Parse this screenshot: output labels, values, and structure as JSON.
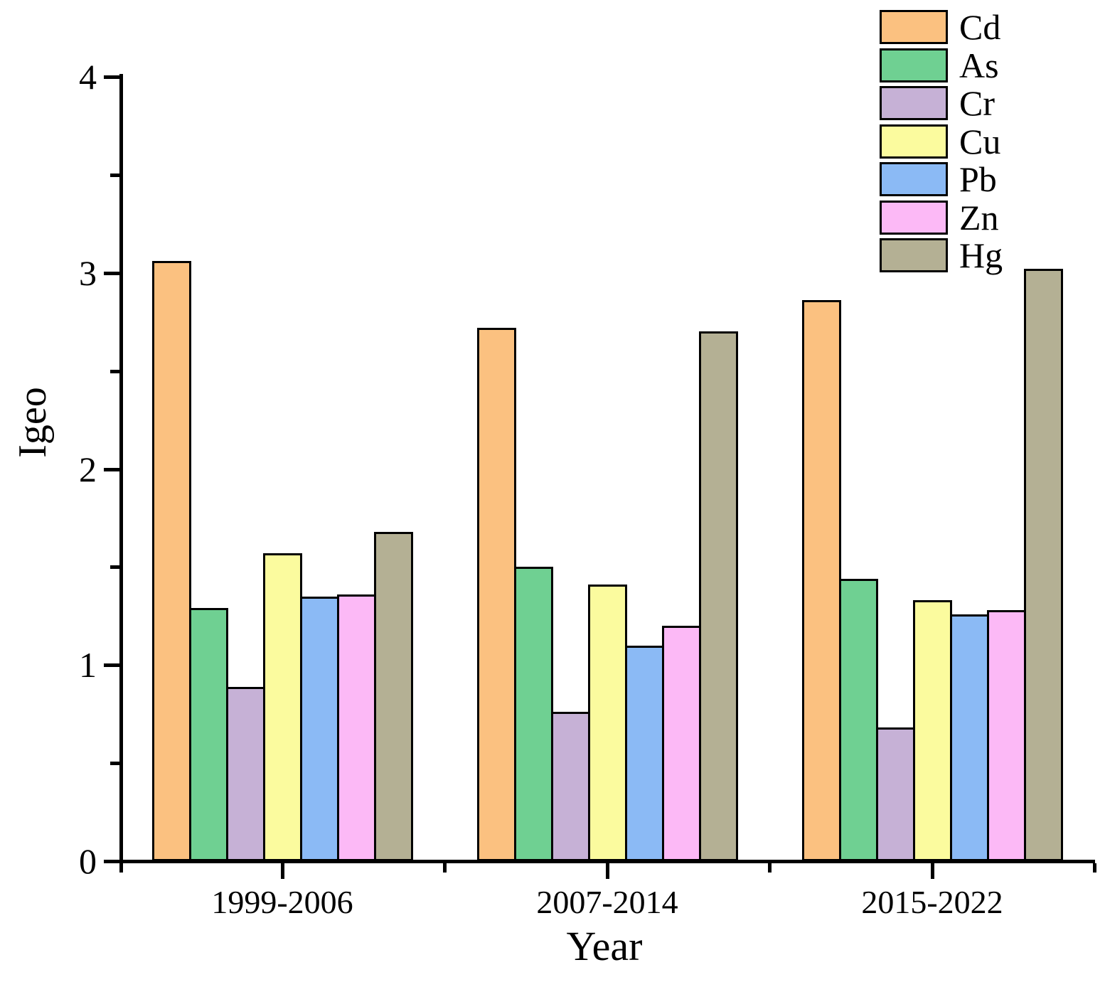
{
  "chart_data": {
    "type": "bar",
    "xlabel": "Year",
    "ylabel": "Igeo",
    "categories": [
      "1999-2006",
      "2007-2014",
      "2015-2022"
    ],
    "series": [
      {
        "name": "Cd",
        "color": "#FBC180",
        "values": [
          3.06,
          2.72,
          2.86
        ]
      },
      {
        "name": "As",
        "color": "#6FD092",
        "values": [
          1.29,
          1.5,
          1.44
        ]
      },
      {
        "name": "Cr",
        "color": "#C6B1D6",
        "values": [
          0.89,
          0.76,
          0.68
        ]
      },
      {
        "name": "Cu",
        "color": "#FBFB9E",
        "values": [
          1.57,
          1.41,
          1.33
        ]
      },
      {
        "name": "Pb",
        "color": "#8BBAF5",
        "values": [
          1.35,
          1.1,
          1.26
        ]
      },
      {
        "name": "Zn",
        "color": "#FCB9F6",
        "values": [
          1.36,
          1.2,
          1.28
        ]
      },
      {
        "name": "Hg",
        "color": "#B4B094",
        "values": [
          1.68,
          2.7,
          3.02
        ]
      }
    ],
    "ylim": [
      0,
      4
    ],
    "yticks": [
      "0",
      "1",
      "2",
      "3",
      "4"
    ],
    "minor_tick_step": 0.5,
    "legend_position": "top-right",
    "grid": "off",
    "bar_border_color": "#000000",
    "axis_color": "#000000"
  }
}
